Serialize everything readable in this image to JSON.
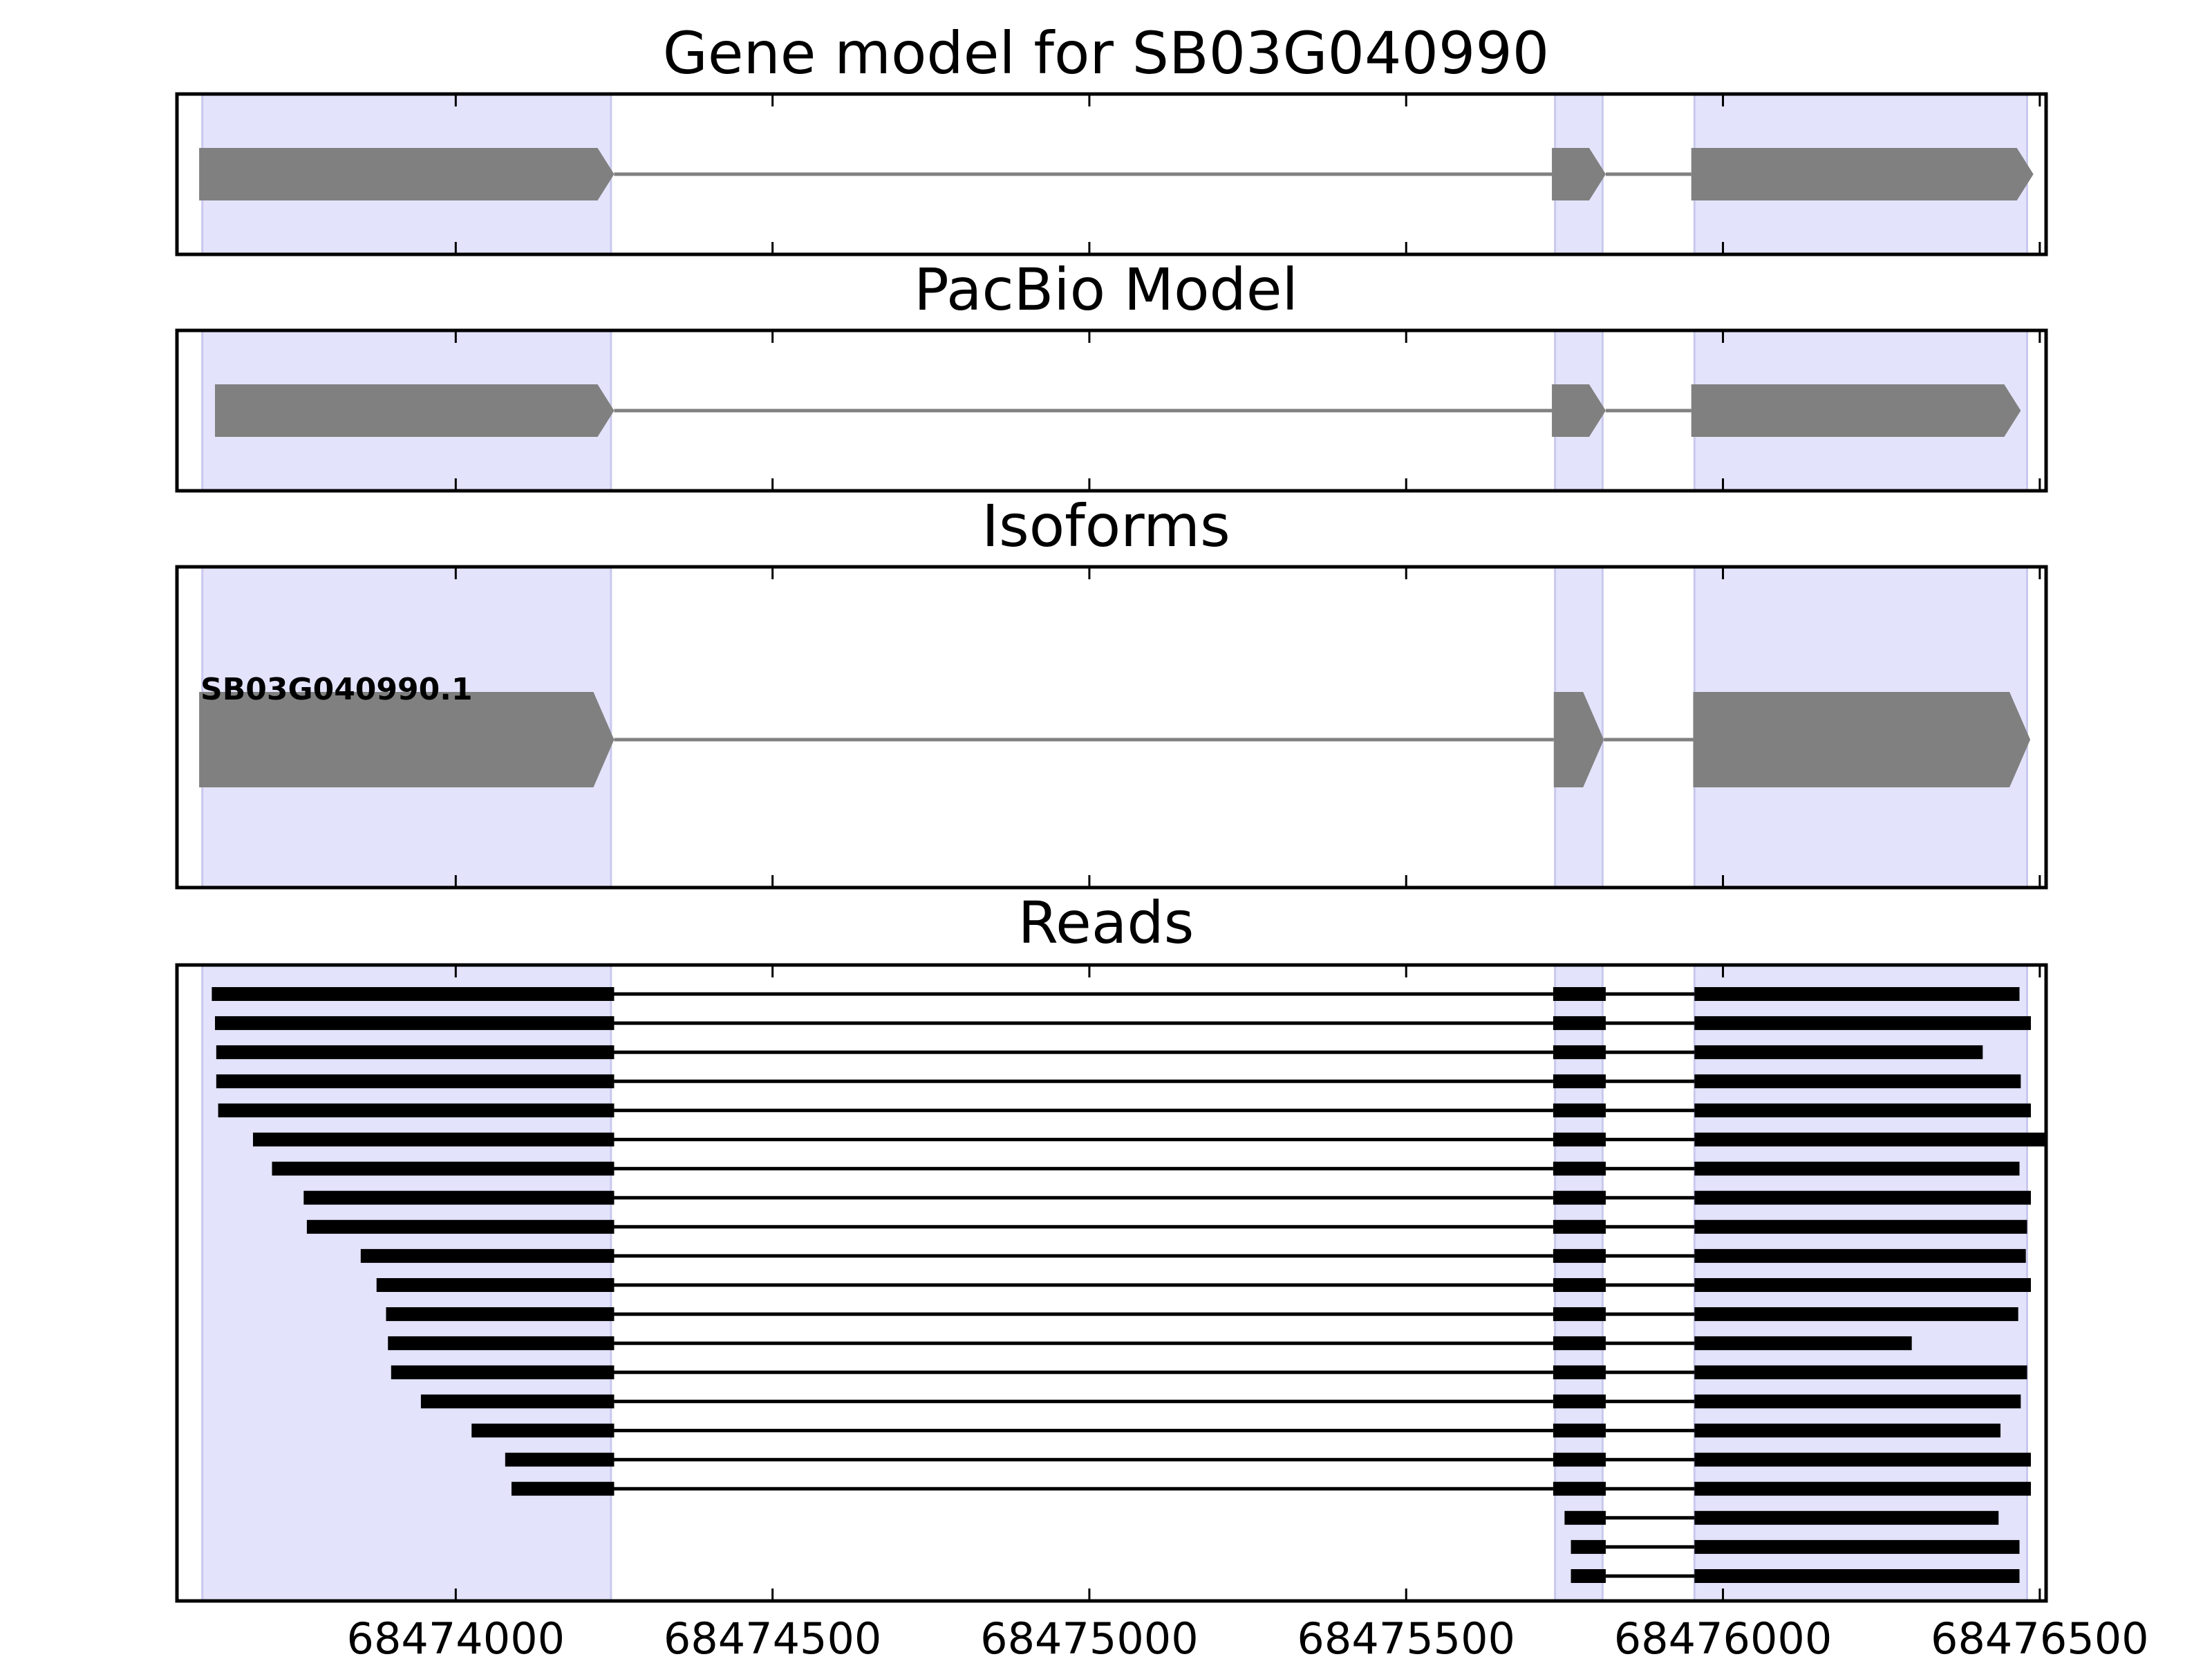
{
  "figure": {
    "panels": [
      {
        "id": "gene",
        "title": "Gene model for SB03G040990"
      },
      {
        "id": "pacbio",
        "title": "PacBio Model"
      },
      {
        "id": "isoforms",
        "title": "Isoforms"
      },
      {
        "id": "reads",
        "title": "Reads"
      }
    ],
    "x_ticks": [
      68474000,
      68474500,
      68475000,
      68475500,
      68476000,
      68476500
    ],
    "x_tick_labels": [
      "68474000",
      "68474500",
      "68475000",
      "68475500",
      "68476000",
      "68476500"
    ],
    "xlim": [
      68473560,
      68476510
    ],
    "colors": {
      "exon_shade": "#e3e3fb",
      "exon_shade_edge": "#c9c9ee",
      "model": "#808080",
      "read": "#000000"
    }
  },
  "chart_data": {
    "type": "gene_track",
    "exon_regions": [
      [
        68473600,
        68474245
      ],
      [
        68475735,
        68475810
      ],
      [
        68475955,
        68476480
      ]
    ],
    "gene_model": {
      "strand": "+",
      "exons": [
        [
          68473595,
          68474250
        ],
        [
          68475730,
          68475815
        ],
        [
          68475950,
          68476490
        ]
      ]
    },
    "pacbio_model": {
      "strand": "+",
      "exons": [
        [
          68473620,
          68474250
        ],
        [
          68475730,
          68475815
        ],
        [
          68475950,
          68476470
        ]
      ]
    },
    "isoforms": [
      {
        "name": "SB03G040990.1",
        "strand": "+",
        "exons": [
          [
            68473595,
            68474250
          ],
          [
            68475733,
            68475812
          ],
          [
            68475953,
            68476485
          ]
        ]
      }
    ],
    "reads": [
      {
        "exons": [
          [
            68473615,
            68474250
          ],
          [
            68475732,
            68475815
          ],
          [
            68475955,
            68476468
          ]
        ]
      },
      {
        "exons": [
          [
            68473620,
            68474250
          ],
          [
            68475732,
            68475815
          ],
          [
            68475955,
            68476486
          ]
        ]
      },
      {
        "exons": [
          [
            68473622,
            68474250
          ],
          [
            68475732,
            68475815
          ],
          [
            68475955,
            68476410
          ]
        ]
      },
      {
        "exons": [
          [
            68473622,
            68474250
          ],
          [
            68475732,
            68475815
          ],
          [
            68475955,
            68476470
          ]
        ]
      },
      {
        "exons": [
          [
            68473625,
            68474250
          ],
          [
            68475732,
            68475815
          ],
          [
            68475955,
            68476486
          ]
        ]
      },
      {
        "exons": [
          [
            68473680,
            68474250
          ],
          [
            68475732,
            68475815
          ],
          [
            68475955,
            68476510
          ]
        ]
      },
      {
        "exons": [
          [
            68473710,
            68474250
          ],
          [
            68475732,
            68475815
          ],
          [
            68475955,
            68476468
          ]
        ]
      },
      {
        "exons": [
          [
            68473760,
            68474250
          ],
          [
            68475732,
            68475815
          ],
          [
            68475955,
            68476486
          ]
        ]
      },
      {
        "exons": [
          [
            68473765,
            68474250
          ],
          [
            68475732,
            68475815
          ],
          [
            68475955,
            68476480
          ]
        ]
      },
      {
        "exons": [
          [
            68473850,
            68474250
          ],
          [
            68475732,
            68475815
          ],
          [
            68475955,
            68476478
          ]
        ]
      },
      {
        "exons": [
          [
            68473875,
            68474250
          ],
          [
            68475732,
            68475815
          ],
          [
            68475955,
            68476486
          ]
        ]
      },
      {
        "exons": [
          [
            68473890,
            68474250
          ],
          [
            68475732,
            68475815
          ],
          [
            68475955,
            68476466
          ]
        ]
      },
      {
        "exons": [
          [
            68473893,
            68474250
          ],
          [
            68475732,
            68475815
          ],
          [
            68475955,
            68476298
          ]
        ]
      },
      {
        "exons": [
          [
            68473898,
            68474250
          ],
          [
            68475732,
            68475815
          ],
          [
            68475955,
            68476480
          ]
        ]
      },
      {
        "exons": [
          [
            68473945,
            68474250
          ],
          [
            68475732,
            68475815
          ],
          [
            68475955,
            68476470
          ]
        ]
      },
      {
        "exons": [
          [
            68474025,
            68474250
          ],
          [
            68475732,
            68475815
          ],
          [
            68475955,
            68476438
          ]
        ]
      },
      {
        "exons": [
          [
            68474078,
            68474250
          ],
          [
            68475732,
            68475815
          ],
          [
            68475955,
            68476486
          ]
        ]
      },
      {
        "exons": [
          [
            68474088,
            68474250
          ],
          [
            68475732,
            68475815
          ],
          [
            68475955,
            68476486
          ]
        ]
      },
      {
        "exons": [
          [
            68475750,
            68475815
          ],
          [
            68475955,
            68476435
          ]
        ]
      },
      {
        "exons": [
          [
            68475760,
            68475815
          ],
          [
            68475955,
            68476468
          ]
        ]
      },
      {
        "exons": [
          [
            68475760,
            68475815
          ],
          [
            68475955,
            68476468
          ]
        ]
      }
    ]
  }
}
